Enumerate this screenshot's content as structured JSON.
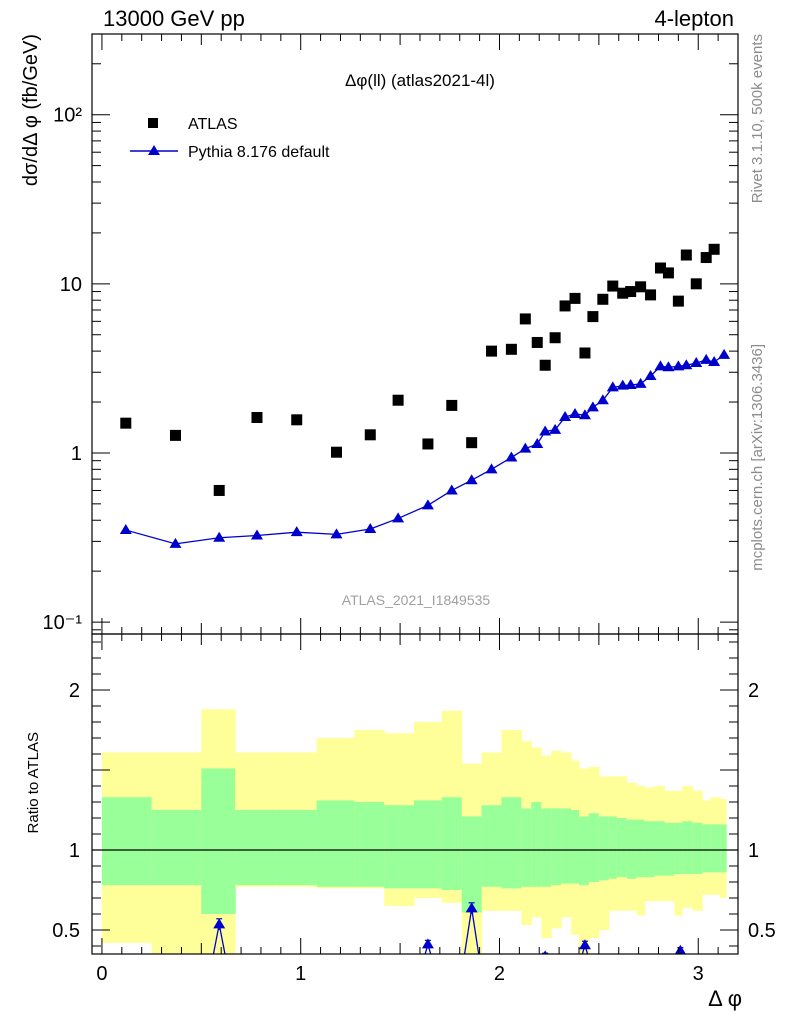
{
  "header": {
    "left": "13000 GeV pp",
    "right": "4-lepton"
  },
  "side": {
    "rivet": "Rivet 3.1.10,  500k events",
    "mcplots": "mcplots.cern.ch [arXiv:1306.3436]"
  },
  "chart_data": [
    {
      "type": "scatter",
      "title": "Δφ(ll) (atlas2021-4l)",
      "watermark": "ATLAS_2021_I1849535",
      "ylabel": "dσ/dΔ φ (fb/GeV)",
      "xlim": [
        -0.05,
        3.2
      ],
      "ylim": [
        0.085,
        300
      ],
      "yscale": "log",
      "ytick_labels": [
        "10⁻¹",
        "1",
        "10",
        "10²"
      ],
      "legend_position": "top-left",
      "series": [
        {
          "name": "ATLAS",
          "marker": "square",
          "color": "#000000",
          "x": [
            0.12,
            0.37,
            0.59,
            0.78,
            0.98,
            1.18,
            1.35,
            1.49,
            1.64,
            1.76,
            1.86,
            1.96,
            2.06,
            2.13,
            2.19,
            2.23,
            2.28,
            2.33,
            2.38,
            2.43,
            2.47,
            2.52,
            2.57,
            2.62,
            2.66,
            2.71,
            2.76,
            2.81,
            2.85,
            2.9,
            2.94,
            2.99,
            3.04,
            3.08
          ],
          "y": [
            1.5,
            1.27,
            0.6,
            1.62,
            1.57,
            1.01,
            1.28,
            2.05,
            1.13,
            1.91,
            1.15,
            4.0,
            4.1,
            6.2,
            4.5,
            3.3,
            4.8,
            7.4,
            8.2,
            3.9,
            6.4,
            8.1,
            9.7,
            8.8,
            9.0,
            9.6,
            8.6,
            12.4,
            11.6,
            7.9,
            14.8,
            10.0,
            14.3,
            16.0
          ]
        },
        {
          "name": "Pythia 8.176 default",
          "marker": "triangle",
          "color": "#0000cc",
          "x": [
            0.12,
            0.37,
            0.59,
            0.78,
            0.98,
            1.18,
            1.35,
            1.49,
            1.64,
            1.76,
            1.86,
            1.96,
            2.06,
            2.13,
            2.19,
            2.23,
            2.28,
            2.33,
            2.38,
            2.43,
            2.47,
            2.52,
            2.57,
            2.62,
            2.66,
            2.71,
            2.76,
            2.81,
            2.85,
            2.9,
            2.94,
            2.99,
            3.04,
            3.08,
            3.13
          ],
          "y": [
            0.35,
            0.29,
            0.315,
            0.325,
            0.34,
            0.33,
            0.355,
            0.41,
            0.49,
            0.6,
            0.69,
            0.8,
            0.94,
            1.06,
            1.13,
            1.34,
            1.37,
            1.63,
            1.7,
            1.67,
            1.86,
            2.05,
            2.44,
            2.5,
            2.52,
            2.56,
            2.85,
            3.25,
            3.21,
            3.25,
            3.3,
            3.4,
            3.55,
            3.45,
            3.8
          ]
        }
      ]
    },
    {
      "type": "area",
      "ylabel": "Ratio to ATLAS",
      "xlabel": "Δ φ",
      "xlim": [
        -0.05,
        3.2
      ],
      "ylim": [
        0.35,
        2.35
      ],
      "x_ticks": [
        0,
        1,
        2,
        3
      ],
      "y_ticks": [
        0.5,
        1,
        2
      ],
      "reference_line": 1,
      "bands": {
        "colors": {
          "outer": "#ffff99",
          "inner": "#99ff99"
        },
        "edges": [
          0.0,
          0.25,
          0.5,
          0.67,
          0.88,
          1.08,
          1.27,
          1.42,
          1.57,
          1.71,
          1.81,
          1.91,
          2.01,
          2.11,
          2.16,
          2.21,
          2.26,
          2.31,
          2.36,
          2.4,
          2.45,
          2.5,
          2.55,
          2.59,
          2.64,
          2.69,
          2.73,
          2.78,
          2.83,
          2.88,
          2.92,
          2.97,
          3.02,
          3.06,
          3.11,
          3.14
        ],
        "outer_hi": [
          1.61,
          1.61,
          1.88,
          1.61,
          1.61,
          1.7,
          1.75,
          1.73,
          1.8,
          1.87,
          1.54,
          1.61,
          1.75,
          1.68,
          1.64,
          1.59,
          1.62,
          1.61,
          1.56,
          1.51,
          1.52,
          1.46,
          1.46,
          1.46,
          1.42,
          1.4,
          1.39,
          1.4,
          1.37,
          1.37,
          1.4,
          1.37,
          1.31,
          1.33,
          1.32
        ],
        "outer_lo": [
          0.42,
          0.35,
          0.35,
          0.77,
          0.77,
          0.76,
          0.76,
          0.65,
          0.7,
          0.67,
          0.35,
          0.62,
          0.62,
          0.53,
          0.58,
          0.45,
          0.51,
          0.58,
          0.47,
          0.35,
          0.45,
          0.5,
          0.62,
          0.62,
          0.62,
          0.59,
          0.68,
          0.68,
          0.68,
          0.59,
          0.64,
          0.62,
          0.72,
          0.72,
          0.7
        ],
        "inner_hi": [
          1.33,
          1.25,
          1.51,
          1.25,
          1.25,
          1.31,
          1.3,
          1.28,
          1.31,
          1.33,
          1.21,
          1.28,
          1.33,
          1.26,
          1.3,
          1.26,
          1.26,
          1.26,
          1.25,
          1.21,
          1.23,
          1.21,
          1.21,
          1.2,
          1.19,
          1.19,
          1.18,
          1.18,
          1.17,
          1.17,
          1.18,
          1.17,
          1.16,
          1.16,
          1.16
        ],
        "inner_lo": [
          0.78,
          0.78,
          0.6,
          0.78,
          0.78,
          0.77,
          0.77,
          0.76,
          0.76,
          0.75,
          0.61,
          0.77,
          0.76,
          0.77,
          0.77,
          0.77,
          0.78,
          0.79,
          0.79,
          0.78,
          0.8,
          0.81,
          0.82,
          0.83,
          0.82,
          0.83,
          0.83,
          0.84,
          0.84,
          0.85,
          0.85,
          0.85,
          0.86,
          0.86,
          0.86
        ]
      },
      "series": [
        {
          "name": "Pythia 8.176 default",
          "color": "#0000cc",
          "x": [
            0.59,
            1.64,
            1.86,
            2.23,
            2.43,
            2.91
          ],
          "y": [
            0.535,
            0.41,
            0.635,
            0.335,
            0.405,
            0.37
          ],
          "err": [
            0.035,
            0.025,
            0.035,
            0.02,
            0.025,
            0.02
          ]
        }
      ]
    }
  ]
}
